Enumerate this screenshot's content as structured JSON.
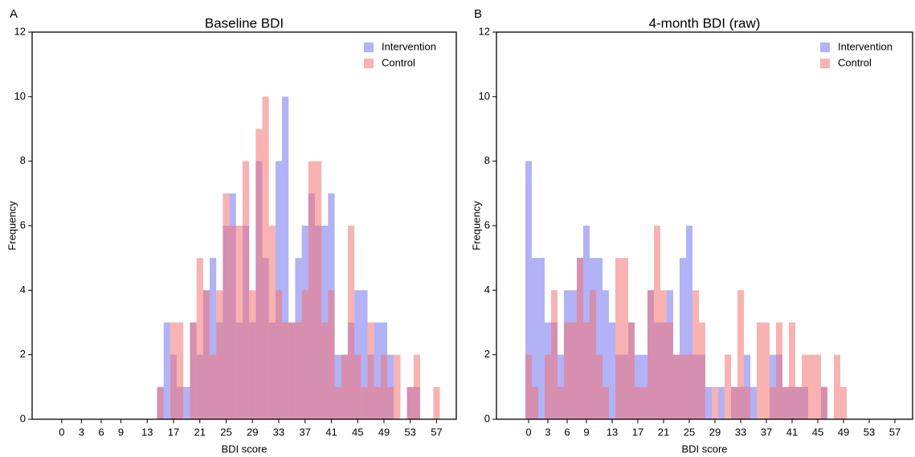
{
  "chart_data": [
    {
      "type": "histogram",
      "panel_label": "A",
      "title": "Baseline BDI",
      "xlabel": "BDI score",
      "ylabel": "Frequency",
      "bins": [
        -0.5,
        0.5,
        1.5,
        2.5,
        3.5,
        4.5,
        5.5,
        6.5,
        7.5,
        8.5,
        9.5,
        10.5,
        11.5,
        12.5,
        13.5,
        14.5,
        15.5,
        16.5,
        17.5,
        18.5,
        19.5,
        20.5,
        21.5,
        22.5,
        23.5,
        24.5,
        25.5,
        26.5,
        27.5,
        28.5,
        29.5,
        30.5,
        31.5,
        32.5,
        33.5,
        34.5,
        35.5,
        36.5,
        37.5,
        38.5,
        39.5,
        40.5,
        41.5,
        42.5,
        43.5,
        44.5,
        45.5,
        46.5,
        47.5,
        48.5,
        49.5,
        50.5,
        51.5,
        52.5,
        53.5,
        54.5,
        55.5,
        56.5,
        57.5,
        58.5,
        59.5
      ],
      "series": [
        {
          "name": "Intervention",
          "color": "#7272ee",
          "values": [
            0,
            0,
            0,
            0,
            0,
            0,
            0,
            0,
            0,
            0,
            0,
            0,
            0,
            0,
            0,
            1,
            3,
            2,
            1,
            1,
            3,
            2,
            4,
            5,
            3,
            6,
            7,
            3,
            6,
            3,
            8,
            5,
            3,
            8,
            10,
            3,
            5,
            6,
            7,
            6,
            6,
            7,
            2,
            2,
            3,
            4,
            4,
            2,
            3,
            3,
            2,
            0,
            0,
            1,
            1,
            0,
            0,
            0,
            0,
            0
          ]
        },
        {
          "name": "Control",
          "color": "#f47272",
          "values": [
            0,
            0,
            0,
            0,
            0,
            0,
            0,
            0,
            0,
            0,
            0,
            0,
            0,
            0,
            0,
            1,
            0,
            3,
            3,
            0,
            3,
            5,
            4,
            2,
            4,
            7,
            6,
            6,
            8,
            4,
            9,
            10,
            6,
            4,
            3,
            3,
            3,
            4,
            8,
            8,
            3,
            4,
            1,
            2,
            6,
            2,
            1,
            3,
            1,
            2,
            1,
            2,
            0,
            1,
            2,
            0,
            0,
            1,
            0,
            0
          ]
        }
      ],
      "xlim": [
        -4.5,
        60
      ],
      "ylim": [
        0,
        12
      ],
      "xticks": [
        0,
        3,
        6,
        9,
        13,
        17,
        21,
        25,
        29,
        33,
        37,
        41,
        45,
        49,
        53,
        57
      ],
      "yticks": [
        0,
        2,
        4,
        6,
        8,
        10,
        12
      ],
      "legend": "upper right"
    },
    {
      "type": "histogram",
      "panel_label": "B",
      "title": "4-month BDI (raw)",
      "xlabel": "BDI score",
      "ylabel": "Frequency",
      "bins": [
        -0.5,
        0.5,
        1.5,
        2.5,
        3.5,
        4.5,
        5.5,
        6.5,
        7.5,
        8.5,
        9.5,
        10.5,
        11.5,
        12.5,
        13.5,
        14.5,
        15.5,
        16.5,
        17.5,
        18.5,
        19.5,
        20.5,
        21.5,
        22.5,
        23.5,
        24.5,
        25.5,
        26.5,
        27.5,
        28.5,
        29.5,
        30.5,
        31.5,
        32.5,
        33.5,
        34.5,
        35.5,
        36.5,
        37.5,
        38.5,
        39.5,
        40.5,
        41.5,
        42.5,
        43.5,
        44.5,
        45.5,
        46.5,
        47.5,
        48.5,
        49.5,
        50.5,
        51.5,
        52.5,
        53.5,
        54.5,
        55.5,
        56.5,
        57.5,
        58.5,
        59.5
      ],
      "series": [
        {
          "name": "Intervention",
          "color": "#7272ee",
          "values": [
            8,
            5,
            5,
            3,
            3,
            2,
            4,
            4,
            5,
            6,
            5,
            5,
            4,
            3,
            2,
            2,
            3,
            2,
            2,
            4,
            3,
            3,
            4,
            2,
            5,
            6,
            2,
            2,
            1,
            0,
            1,
            0,
            1,
            1,
            2,
            1,
            0,
            0,
            2,
            2,
            1,
            1,
            1,
            1,
            0,
            0,
            1,
            0,
            0,
            0,
            0,
            0,
            0,
            0,
            0,
            0,
            0,
            0,
            0,
            0
          ]
        },
        {
          "name": "Control",
          "color": "#f47272",
          "values": [
            2,
            1,
            0,
            2,
            4,
            1,
            3,
            3,
            5,
            3,
            4,
            2,
            1,
            0,
            5,
            5,
            3,
            1,
            1,
            4,
            6,
            4,
            3,
            2,
            2,
            2,
            4,
            3,
            0,
            1,
            0,
            2,
            1,
            4,
            1,
            0,
            3,
            3,
            1,
            3,
            1,
            3,
            1,
            2,
            2,
            2,
            1,
            0,
            2,
            1,
            0,
            0,
            0,
            0,
            0,
            0,
            0,
            0,
            0,
            0
          ]
        }
      ],
      "xlim": [
        -5,
        59.75
      ],
      "ylim": [
        0,
        12
      ],
      "xticks": [
        0,
        3,
        6,
        9,
        13,
        17,
        21,
        25,
        29,
        33,
        37,
        41,
        45,
        49,
        53,
        57
      ],
      "yticks": [
        0,
        2,
        4,
        6,
        8,
        10,
        12
      ],
      "legend": "upper right"
    }
  ]
}
